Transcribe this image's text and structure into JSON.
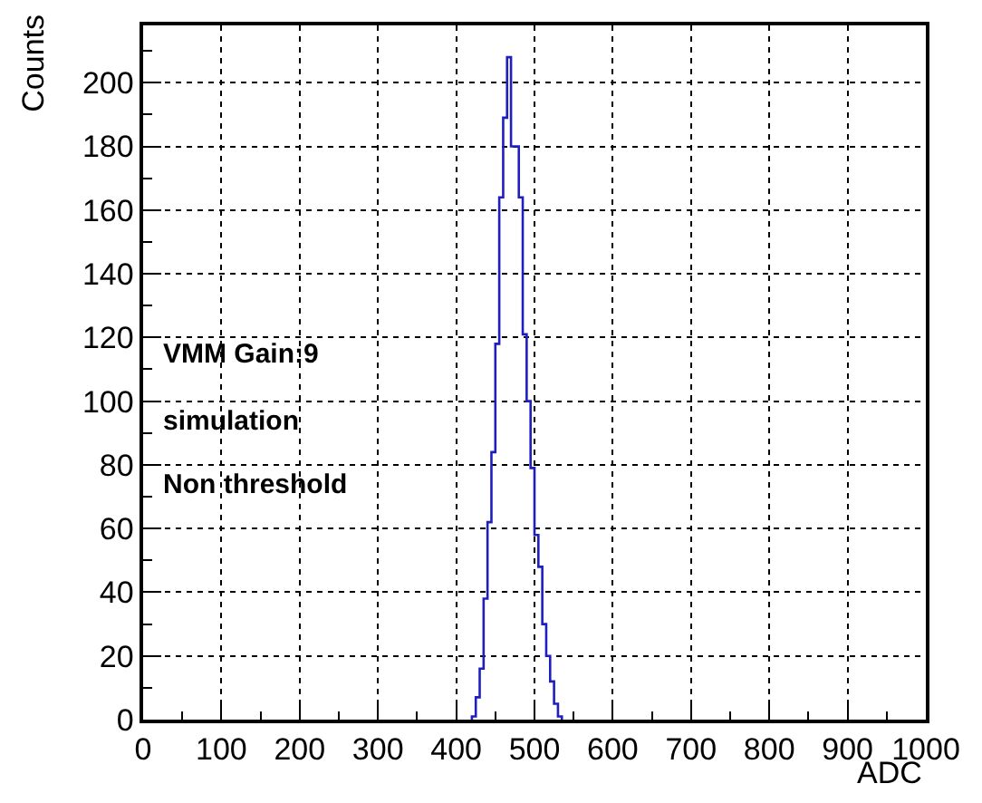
{
  "chart_data": {
    "type": "histogram",
    "xlabel": "ADC",
    "ylabel": "Counts",
    "bins": [
      420,
      425,
      430,
      435,
      440,
      445,
      450,
      455,
      460,
      465,
      470,
      475,
      480,
      485,
      490,
      495,
      500,
      505,
      510,
      515,
      520,
      525,
      530,
      535
    ],
    "values": [
      1,
      7,
      16,
      38,
      62,
      84,
      118,
      164,
      189,
      208,
      180,
      180,
      164,
      121,
      100,
      79,
      58,
      48,
      30,
      20,
      12,
      5,
      1
    ],
    "color": "#1f1fbf",
    "xlim": [
      0,
      1000
    ],
    "xticks": [
      0,
      100,
      200,
      300,
      400,
      500,
      600,
      700,
      800,
      900,
      1000
    ],
    "ylim": [
      0,
      218
    ],
    "yticks": [
      0,
      20,
      40,
      60,
      80,
      100,
      120,
      140,
      160,
      180,
      200
    ],
    "grid": true,
    "annotations": [
      "VMM Gain:9",
      "simulation",
      "Non threshold"
    ]
  }
}
